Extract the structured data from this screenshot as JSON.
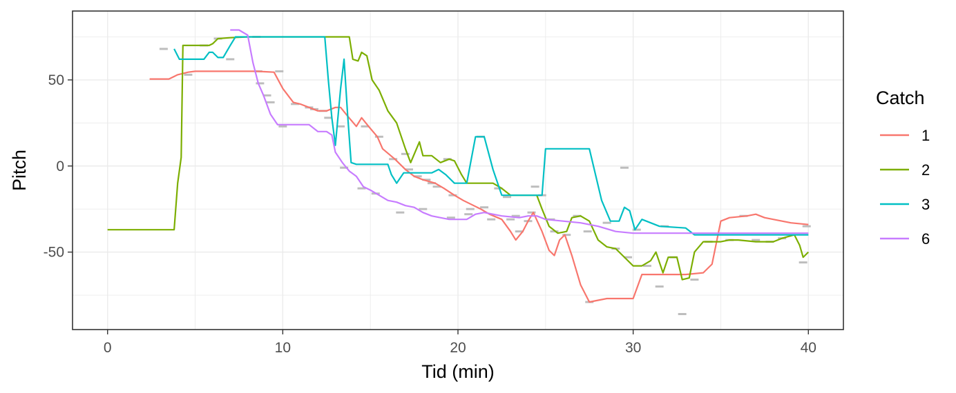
{
  "chart_data": {
    "type": "line",
    "title": "",
    "xlabel": "Tid (min)",
    "ylabel": "Pitch",
    "xlim": [
      -2,
      42
    ],
    "ylim": [
      -95,
      90
    ],
    "x_ticks": [
      0,
      10,
      20,
      30,
      40
    ],
    "y_ticks": [
      -50,
      0,
      50
    ],
    "x_tick_labels": [
      "0",
      "10",
      "20",
      "30",
      "40"
    ],
    "y_tick_labels": [
      "-50",
      "0",
      "50"
    ],
    "grid": true,
    "legend": {
      "title": "Catch",
      "position": "right"
    },
    "series": [
      {
        "name": "1",
        "color": "#F8766D",
        "points": [
          [
            2.4,
            50.5
          ],
          [
            3.5,
            50.5
          ],
          [
            4.0,
            53
          ],
          [
            4.6,
            54.5
          ],
          [
            5.0,
            55
          ],
          [
            8.5,
            55
          ],
          [
            9.5,
            54.5
          ],
          [
            10.0,
            45
          ],
          [
            10.6,
            37
          ],
          [
            11.0,
            36
          ],
          [
            11.5,
            34
          ],
          [
            12.0,
            32
          ],
          [
            12.5,
            32
          ],
          [
            13.0,
            34
          ],
          [
            13.3,
            34
          ],
          [
            13.7,
            29
          ],
          [
            14.2,
            23
          ],
          [
            14.5,
            28
          ],
          [
            14.9,
            23
          ],
          [
            15.4,
            17
          ],
          [
            15.7,
            10
          ],
          [
            16.4,
            4
          ],
          [
            17.0,
            -2
          ],
          [
            17.5,
            -6
          ],
          [
            18.0,
            -8
          ],
          [
            18.7,
            -10
          ],
          [
            19.2,
            -13
          ],
          [
            19.8,
            -17
          ],
          [
            20.3,
            -20
          ],
          [
            20.9,
            -23
          ],
          [
            21.3,
            -25
          ],
          [
            21.8,
            -28
          ],
          [
            22.5,
            -31
          ],
          [
            23.0,
            -38
          ],
          [
            23.3,
            -43
          ],
          [
            23.7,
            -38
          ],
          [
            24.0,
            -32
          ],
          [
            24.3,
            -27
          ],
          [
            24.8,
            -38
          ],
          [
            25.2,
            -49
          ],
          [
            25.5,
            -52
          ],
          [
            25.8,
            -43
          ],
          [
            26.1,
            -40
          ],
          [
            26.5,
            -52
          ],
          [
            27.0,
            -69
          ],
          [
            27.5,
            -79
          ],
          [
            28.0,
            -78
          ],
          [
            28.5,
            -77
          ],
          [
            30.0,
            -77
          ],
          [
            30.5,
            -63
          ],
          [
            31.0,
            -63
          ],
          [
            33.0,
            -63
          ],
          [
            34.0,
            -62
          ],
          [
            34.5,
            -57
          ],
          [
            35.0,
            -32
          ],
          [
            35.5,
            -30
          ],
          [
            36.5,
            -29
          ],
          [
            37.0,
            -28
          ],
          [
            37.5,
            -30
          ],
          [
            38.0,
            -31
          ],
          [
            39.0,
            -33
          ],
          [
            40.0,
            -34
          ]
        ]
      },
      {
        "name": "2",
        "color": "#7CAE00",
        "points": [
          [
            0.0,
            -37
          ],
          [
            3.8,
            -37
          ],
          [
            4.0,
            -10
          ],
          [
            4.2,
            5
          ],
          [
            4.3,
            70
          ],
          [
            5.0,
            70
          ],
          [
            5.8,
            70
          ],
          [
            6.0,
            71
          ],
          [
            6.3,
            74
          ],
          [
            7.0,
            74.5
          ],
          [
            8.0,
            75
          ],
          [
            12.5,
            75
          ],
          [
            13.8,
            75
          ],
          [
            14.0,
            62
          ],
          [
            14.3,
            61
          ],
          [
            14.5,
            66
          ],
          [
            14.8,
            64
          ],
          [
            15.1,
            50
          ],
          [
            15.5,
            44
          ],
          [
            16.0,
            32
          ],
          [
            16.5,
            25
          ],
          [
            17.0,
            10
          ],
          [
            17.3,
            2
          ],
          [
            17.8,
            14
          ],
          [
            18.0,
            6
          ],
          [
            18.5,
            6
          ],
          [
            19.0,
            2
          ],
          [
            19.5,
            4
          ],
          [
            19.8,
            3
          ],
          [
            20.2,
            -5
          ],
          [
            20.5,
            -10
          ],
          [
            22.0,
            -10
          ],
          [
            22.5,
            -13
          ],
          [
            23.0,
            -17
          ],
          [
            24.5,
            -17
          ],
          [
            24.8,
            -25
          ],
          [
            25.2,
            -35
          ],
          [
            25.7,
            -39
          ],
          [
            26.2,
            -38
          ],
          [
            26.5,
            -30
          ],
          [
            27.0,
            -29
          ],
          [
            27.5,
            -32
          ],
          [
            28.0,
            -43
          ],
          [
            28.5,
            -47
          ],
          [
            29.0,
            -48
          ],
          [
            29.5,
            -53
          ],
          [
            30.0,
            -58
          ],
          [
            30.5,
            -58
          ],
          [
            31.0,
            -55
          ],
          [
            31.3,
            -50
          ],
          [
            31.7,
            -62
          ],
          [
            32.0,
            -53
          ],
          [
            32.5,
            -53
          ],
          [
            32.8,
            -66
          ],
          [
            33.2,
            -65
          ],
          [
            33.5,
            -50
          ],
          [
            34.0,
            -44
          ],
          [
            35.0,
            -44
          ],
          [
            35.5,
            -43
          ],
          [
            36.0,
            -43
          ],
          [
            37.0,
            -44
          ],
          [
            38.0,
            -44
          ],
          [
            38.5,
            -42
          ],
          [
            39.2,
            -40
          ],
          [
            39.5,
            -46
          ],
          [
            39.7,
            -53
          ],
          [
            40.0,
            -50
          ]
        ]
      },
      {
        "name": "3",
        "color": "#00BFC4",
        "points": [
          [
            3.8,
            68
          ],
          [
            4.1,
            62
          ],
          [
            5.5,
            62
          ],
          [
            5.8,
            66
          ],
          [
            6.0,
            66
          ],
          [
            6.3,
            63
          ],
          [
            6.6,
            63
          ],
          [
            7.0,
            70
          ],
          [
            7.3,
            75
          ],
          [
            12.4,
            75
          ],
          [
            12.6,
            50
          ],
          [
            12.8,
            28
          ],
          [
            13.0,
            12
          ],
          [
            13.3,
            45
          ],
          [
            13.5,
            62
          ],
          [
            13.7,
            30
          ],
          [
            13.9,
            2
          ],
          [
            14.2,
            1
          ],
          [
            15.0,
            1
          ],
          [
            16.0,
            1
          ],
          [
            16.2,
            -5
          ],
          [
            16.5,
            -10
          ],
          [
            16.9,
            -4
          ],
          [
            17.5,
            -4
          ],
          [
            18.5,
            -4
          ],
          [
            18.9,
            -2
          ],
          [
            19.3,
            -5
          ],
          [
            19.8,
            -10
          ],
          [
            20.5,
            -10
          ],
          [
            21.0,
            17
          ],
          [
            21.5,
            17
          ],
          [
            22.0,
            -2
          ],
          [
            22.5,
            -17
          ],
          [
            23.0,
            -17
          ],
          [
            24.8,
            -17
          ],
          [
            25.0,
            10
          ],
          [
            27.5,
            10
          ],
          [
            28.2,
            -20
          ],
          [
            28.7,
            -32
          ],
          [
            29.2,
            -32
          ],
          [
            29.5,
            -24
          ],
          [
            29.8,
            -26
          ],
          [
            30.1,
            -37
          ],
          [
            30.5,
            -31
          ],
          [
            31.0,
            -33
          ],
          [
            31.5,
            -35
          ],
          [
            33.0,
            -36
          ],
          [
            33.5,
            -40
          ],
          [
            35.0,
            -40
          ],
          [
            40.0,
            -40
          ]
        ]
      },
      {
        "name": "6",
        "color": "#C77CFF",
        "points": [
          [
            7.0,
            79
          ],
          [
            7.5,
            79
          ],
          [
            8.0,
            76
          ],
          [
            8.3,
            60
          ],
          [
            8.6,
            48
          ],
          [
            8.9,
            41
          ],
          [
            9.3,
            30
          ],
          [
            9.7,
            24
          ],
          [
            10.5,
            24
          ],
          [
            11.5,
            24
          ],
          [
            12.0,
            20
          ],
          [
            12.5,
            20
          ],
          [
            12.8,
            18
          ],
          [
            13.0,
            8
          ],
          [
            13.4,
            2
          ],
          [
            13.8,
            -3
          ],
          [
            14.2,
            -6
          ],
          [
            14.6,
            -12
          ],
          [
            15.0,
            -14
          ],
          [
            15.5,
            -17
          ],
          [
            16.0,
            -20
          ],
          [
            16.5,
            -21
          ],
          [
            17.0,
            -23
          ],
          [
            17.5,
            -24
          ],
          [
            18.0,
            -27
          ],
          [
            18.5,
            -29
          ],
          [
            19.0,
            -30
          ],
          [
            19.5,
            -31
          ],
          [
            20.5,
            -31
          ],
          [
            21.0,
            -28
          ],
          [
            21.5,
            -27
          ],
          [
            22.5,
            -29
          ],
          [
            23.5,
            -30
          ],
          [
            24.0,
            -29
          ],
          [
            24.5,
            -29
          ],
          [
            25.0,
            -31
          ],
          [
            26.0,
            -32
          ],
          [
            27.0,
            -33
          ],
          [
            28.0,
            -35
          ],
          [
            29.0,
            -38
          ],
          [
            30.0,
            -39
          ],
          [
            35.0,
            -39
          ],
          [
            40.0,
            -39
          ]
        ]
      }
    ],
    "gray_segments": [
      [
        3.2,
        68
      ],
      [
        4.6,
        53
      ],
      [
        5.5,
        70
      ],
      [
        6.3,
        74
      ],
      [
        7.0,
        62
      ],
      [
        8.5,
        75
      ],
      [
        8.6,
        55
      ],
      [
        9.3,
        37
      ],
      [
        9.8,
        55
      ],
      [
        10.7,
        36
      ],
      [
        11.5,
        34
      ],
      [
        12.3,
        32
      ],
      [
        13.3,
        23
      ],
      [
        14.7,
        23
      ],
      [
        15.5,
        17
      ],
      [
        16.3,
        4
      ],
      [
        17.2,
        -2
      ],
      [
        17.7,
        -6
      ],
      [
        18.2,
        -8
      ],
      [
        18.8,
        -12
      ],
      [
        19.4,
        4
      ],
      [
        19.7,
        -17
      ],
      [
        20.7,
        -25
      ],
      [
        21.3,
        17
      ],
      [
        21.9,
        -31
      ],
      [
        22.3,
        -13
      ],
      [
        23.0,
        -31
      ],
      [
        23.5,
        -38
      ],
      [
        24.2,
        -27
      ],
      [
        24.4,
        -12
      ],
      [
        24.8,
        -17
      ],
      [
        25.5,
        -38
      ],
      [
        26.2,
        -40
      ],
      [
        26.8,
        -29
      ],
      [
        27.5,
        -79
      ],
      [
        28.5,
        -33
      ],
      [
        29.0,
        -48
      ],
      [
        29.7,
        -53
      ],
      [
        30.2,
        -37
      ],
      [
        30.8,
        -58
      ],
      [
        31.5,
        -70
      ],
      [
        32.3,
        -53
      ],
      [
        32.8,
        -86
      ],
      [
        33.5,
        -66
      ],
      [
        34.3,
        -44
      ],
      [
        35.5,
        -43
      ],
      [
        36.3,
        -29
      ],
      [
        37.0,
        -43
      ],
      [
        37.8,
        -44
      ],
      [
        38.5,
        -42
      ],
      [
        39.7,
        -56
      ],
      [
        39.9,
        -35
      ],
      [
        29.5,
        -1
      ],
      [
        18.5,
        -10
      ],
      [
        21.5,
        -24
      ],
      [
        22.8,
        -18
      ],
      [
        24.0,
        -32
      ],
      [
        27.4,
        -38
      ],
      [
        31.8,
        -35
      ],
      [
        12.6,
        28
      ],
      [
        13.5,
        -1
      ],
      [
        14.5,
        -13
      ],
      [
        15.3,
        -16
      ],
      [
        16.7,
        -27
      ],
      [
        19.6,
        -30
      ],
      [
        25.3,
        -31
      ],
      [
        10.0,
        23
      ],
      [
        9.1,
        41
      ],
      [
        8.7,
        48
      ],
      [
        11.8,
        33
      ],
      [
        17.0,
        7
      ],
      [
        18.0,
        -25
      ],
      [
        20.6,
        -28
      ],
      [
        23.3,
        -29
      ]
    ]
  }
}
